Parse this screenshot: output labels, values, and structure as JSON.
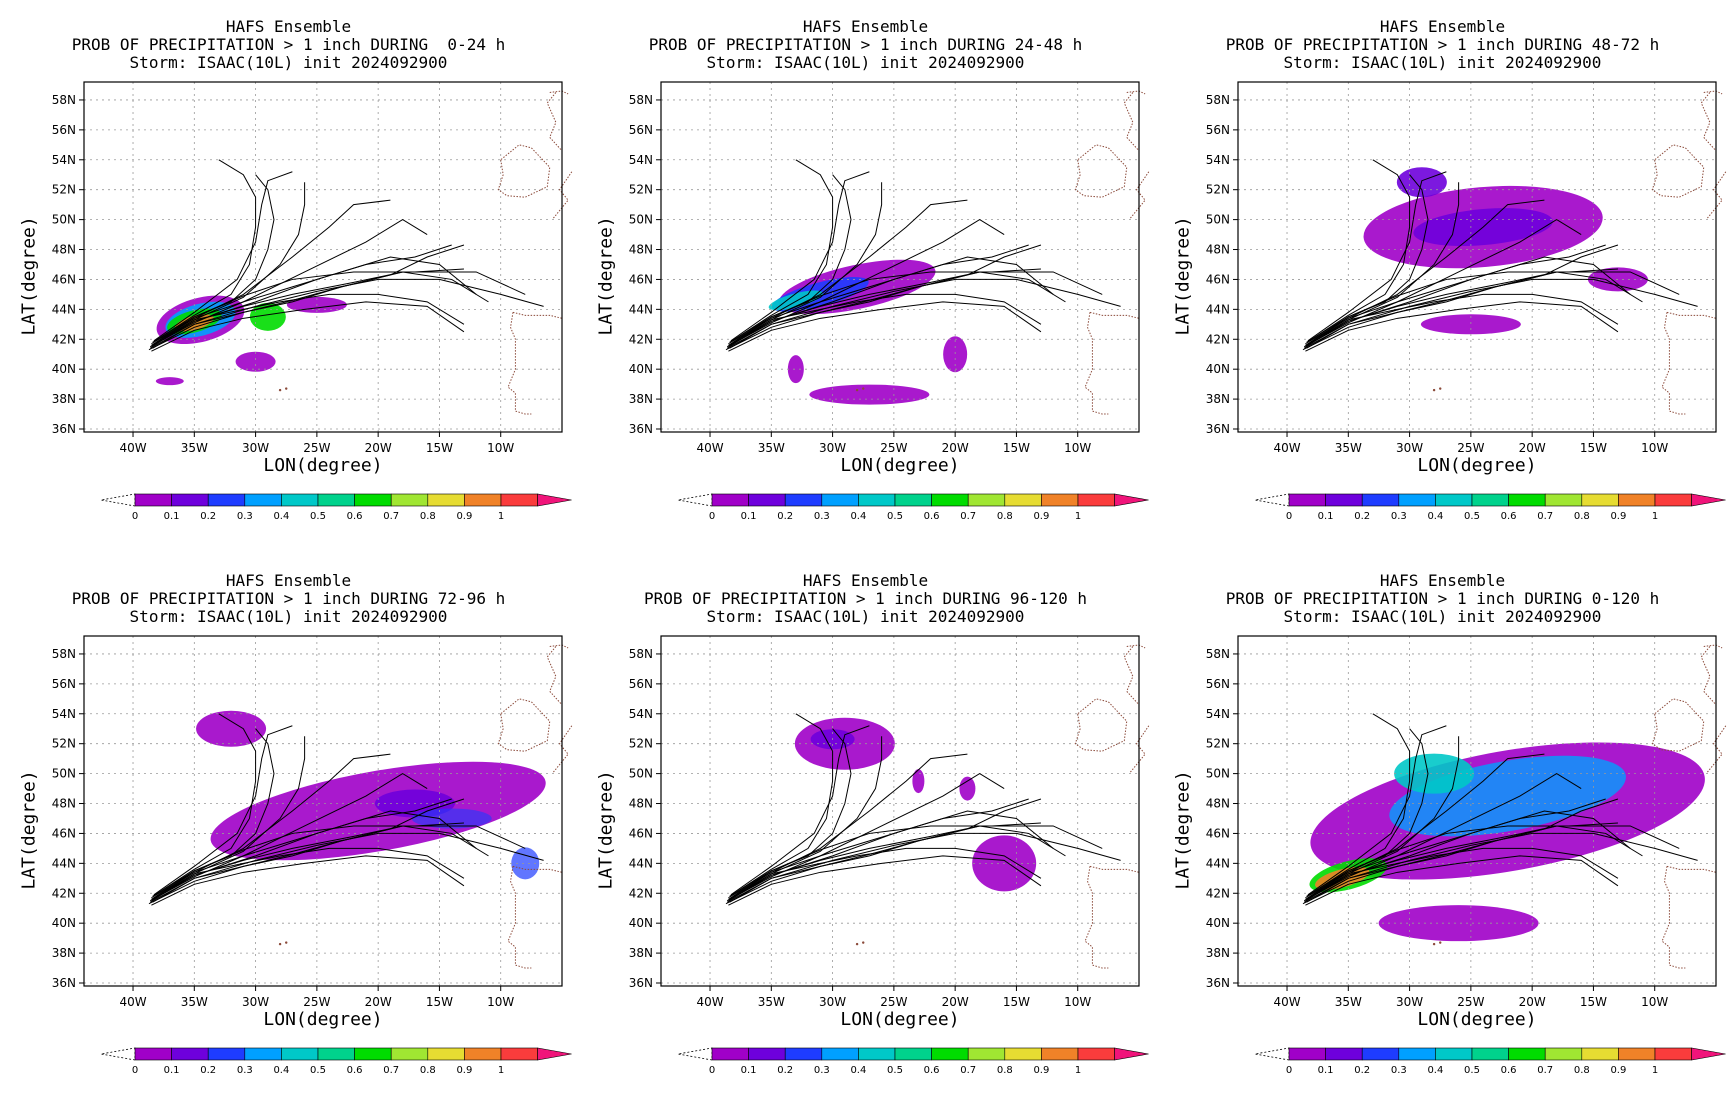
{
  "common": {
    "title_line1": "HAFS Ensemble",
    "title_line3": "Storm: ISAAC(10L) init 2024092900",
    "xlabel": "LON(degree)",
    "ylabel": "LAT(degree)",
    "lat_ticks": [
      "58N",
      "56N",
      "54N",
      "52N",
      "50N",
      "48N",
      "46N",
      "44N",
      "42N",
      "40N",
      "38N",
      "36N"
    ],
    "lon_ticks": [
      "40W",
      "35W",
      "30W",
      "25W",
      "20W",
      "15W",
      "10W"
    ],
    "colorbar_ticks": [
      "0",
      "0.1",
      "0.2",
      "0.3",
      "0.4",
      "0.5",
      "0.6",
      "0.7",
      "0.8",
      "0.9",
      "1"
    ],
    "colorbar_colors": [
      "#a000c8",
      "#6e00dc",
      "#1e3cff",
      "#00a0ff",
      "#00c8c8",
      "#00d28c",
      "#00dc00",
      "#a0e632",
      "#e6dc32",
      "#f08228",
      "#fa3c3c"
    ],
    "overflow_color": "#f0147a"
  },
  "panels": [
    {
      "id": "p1",
      "title_line2": "PROB OF PRECIPITATION > 1 inch DURING  0-24 h"
    },
    {
      "id": "p2",
      "title_line2": "PROB OF PRECIPITATION > 1 inch DURING 24-48 h"
    },
    {
      "id": "p3",
      "title_line2": "PROB OF PRECIPITATION > 1 inch DURING 48-72 h"
    },
    {
      "id": "p4",
      "title_line2": "PROB OF PRECIPITATION > 1 inch DURING 72-96 h"
    },
    {
      "id": "p5",
      "title_line2": "PROB OF PRECIPITATION > 1 inch DURING 96-120 h"
    },
    {
      "id": "p6",
      "title_line2": "PROB OF PRECIPITATION > 1 inch DURING 0-120 h"
    }
  ]
}
